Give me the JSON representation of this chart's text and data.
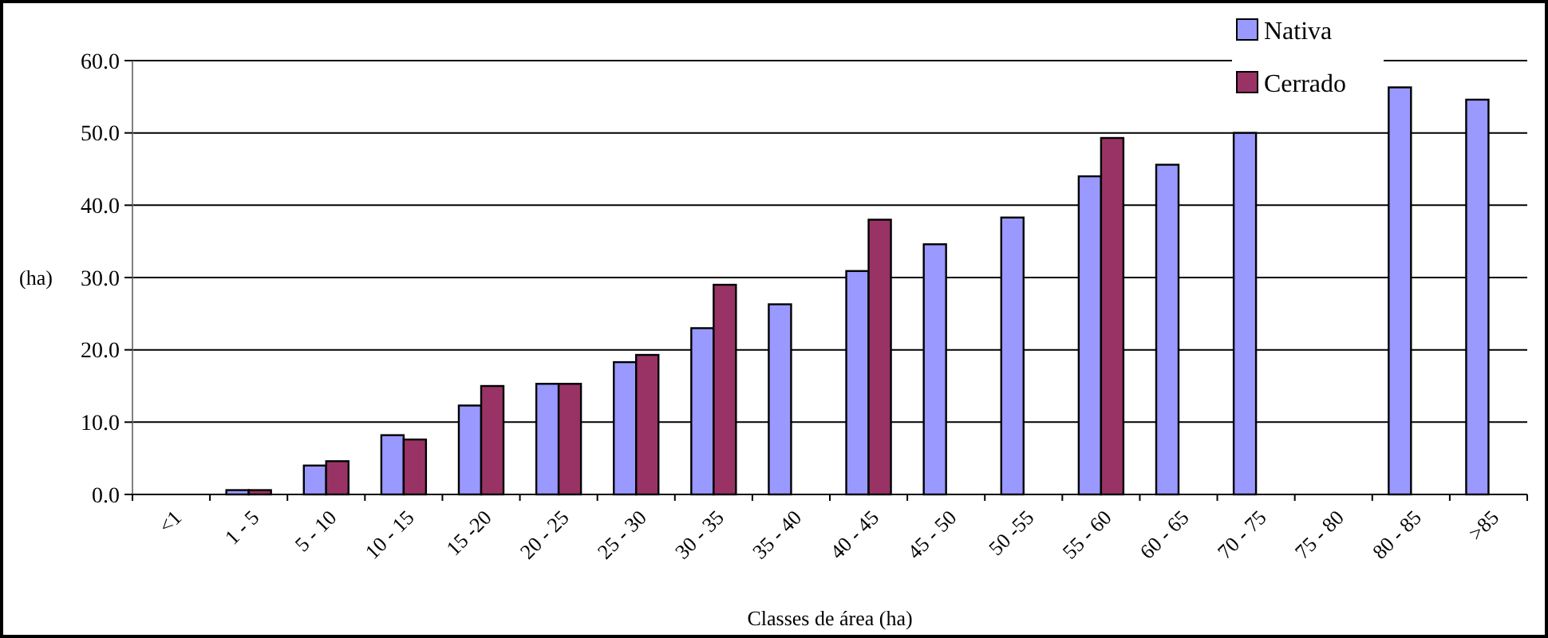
{
  "chart_data": {
    "type": "bar",
    "xlabel": "Classes de área (ha)",
    "ylabel": "(ha)",
    "categories": [
      "<1",
      "1 - 5",
      "5 - 10",
      "10 - 15",
      "15 -20",
      "20 - 25",
      "25 - 30",
      "30 - 35",
      "35 - 40",
      "40 - 45",
      "45 - 50",
      "50 -55",
      "55 - 60",
      "60 - 65",
      "70 - 75",
      "75 - 80",
      "80 - 85",
      ">85"
    ],
    "series": [
      {
        "name": "Nativa",
        "color": "#9999ff",
        "values": [
          null,
          0.6,
          4.0,
          8.2,
          12.3,
          15.3,
          18.3,
          23.0,
          26.3,
          30.9,
          34.6,
          38.3,
          44.0,
          45.6,
          50.0,
          null,
          56.3,
          54.6
        ]
      },
      {
        "name": "Cerrado",
        "color": "#993366",
        "values": [
          null,
          0.6,
          4.6,
          7.6,
          15.0,
          15.3,
          19.3,
          29.0,
          null,
          38.0,
          null,
          null,
          49.3,
          null,
          null,
          null,
          null,
          null
        ]
      }
    ],
    "ylim": [
      0,
      60
    ],
    "yticks": [
      {
        "value": 0,
        "label": "0.0"
      },
      {
        "value": 10,
        "label": "10.0"
      },
      {
        "value": 20,
        "label": "20.0"
      },
      {
        "value": 30,
        "label": "30.0"
      },
      {
        "value": 40,
        "label": "40.0"
      },
      {
        "value": 50,
        "label": "50.0"
      },
      {
        "value": 60,
        "label": "60.0"
      }
    ],
    "grid": "y",
    "legend": "top right"
  }
}
